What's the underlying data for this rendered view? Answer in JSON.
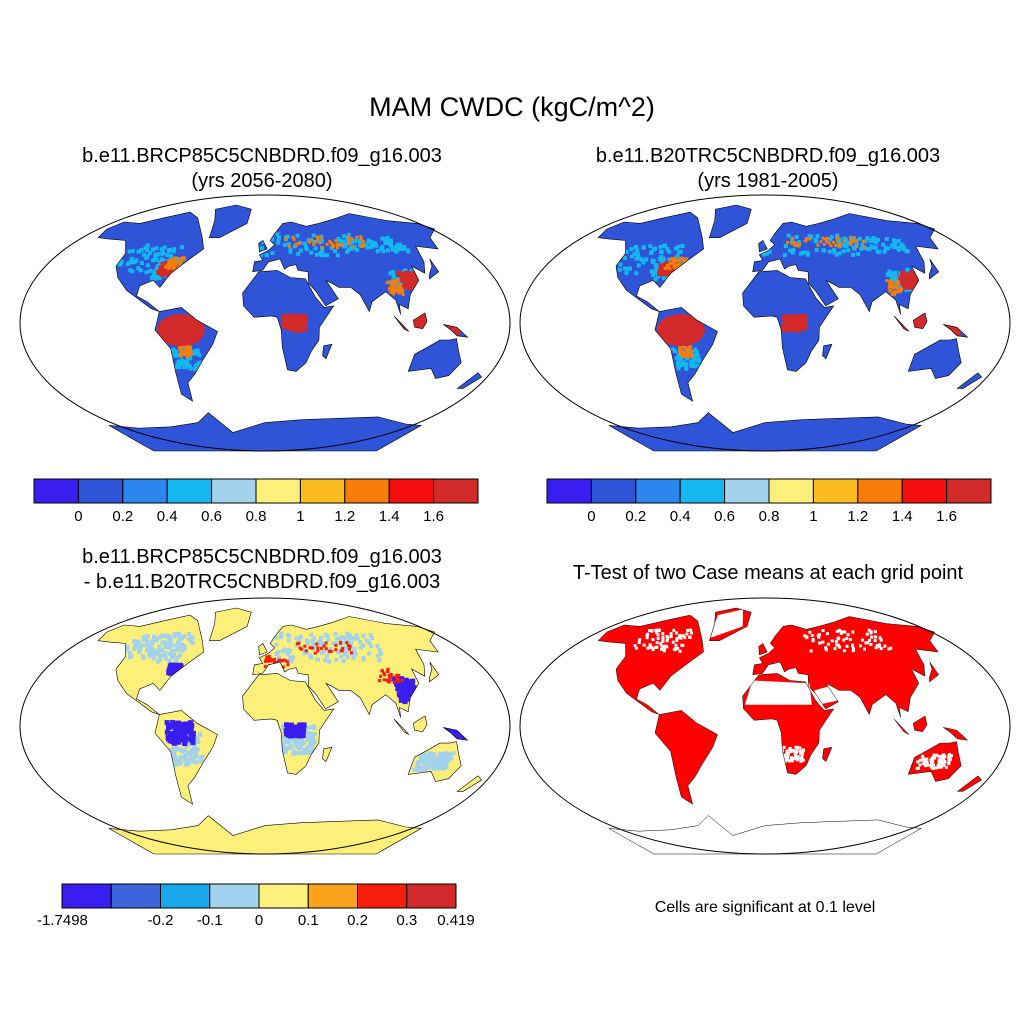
{
  "main_title": "MAM CWDC (kgC/m^2)",
  "panels": {
    "top_left": {
      "title_line1": "b.e11.BRCP85C5CNBDRD.f09_g16.003",
      "title_line2": "(yrs 2056-2080)"
    },
    "top_right": {
      "title_line1": "b.e11.B20TRC5CNBDRD.f09_g16.003",
      "title_line2": "(yrs 1981-2005)"
    },
    "bottom_left": {
      "title_line1": "b.e11.BRCP85C5CNBDRD.f09_g16.003",
      "title_line2": "- b.e11.B20TRC5CNBDRD.f09_g16.003"
    },
    "bottom_right": {
      "title_line1": "T-Test of two Case means at each grid point",
      "note": "Cells are significant at 0.1 level"
    }
  },
  "colorbars": {
    "absolute": {
      "colors": [
        "#3a1ef0",
        "#2f54d8",
        "#2b86ee",
        "#13b8f0",
        "#a3d2ec",
        "#fdf07a",
        "#fbbc1e",
        "#f87c08",
        "#f40d0d",
        "#d22a2a"
      ],
      "labels": [
        "0",
        "0.2",
        "0.4",
        "0.6",
        "0.8",
        "1",
        "1.2",
        "1.4",
        "1.6"
      ]
    },
    "difference": {
      "colors": [
        "#3a1ef0",
        "#3d63da",
        "#1aa8ec",
        "#a3d2ec",
        "#fdf07a",
        "#fba11a",
        "#f61d0c",
        "#d22a2a"
      ],
      "labels": [
        "-1.7498",
        "-0.2",
        "-0.1",
        "0",
        "0.1",
        "0.2",
        "0.3",
        "0.419"
      ]
    },
    "significance_color": "#ff0000"
  },
  "map_colors": {
    "abs_low": "#2f54d8",
    "abs_mid": "#13b8f0",
    "abs_high": "#d22a2a",
    "abs_highlight": "#f87c08",
    "diff_base": "#fdf07a",
    "diff_neg": "#3a1ef0",
    "diff_light": "#a3d2ec",
    "diff_pos": "#f61d0c"
  }
}
